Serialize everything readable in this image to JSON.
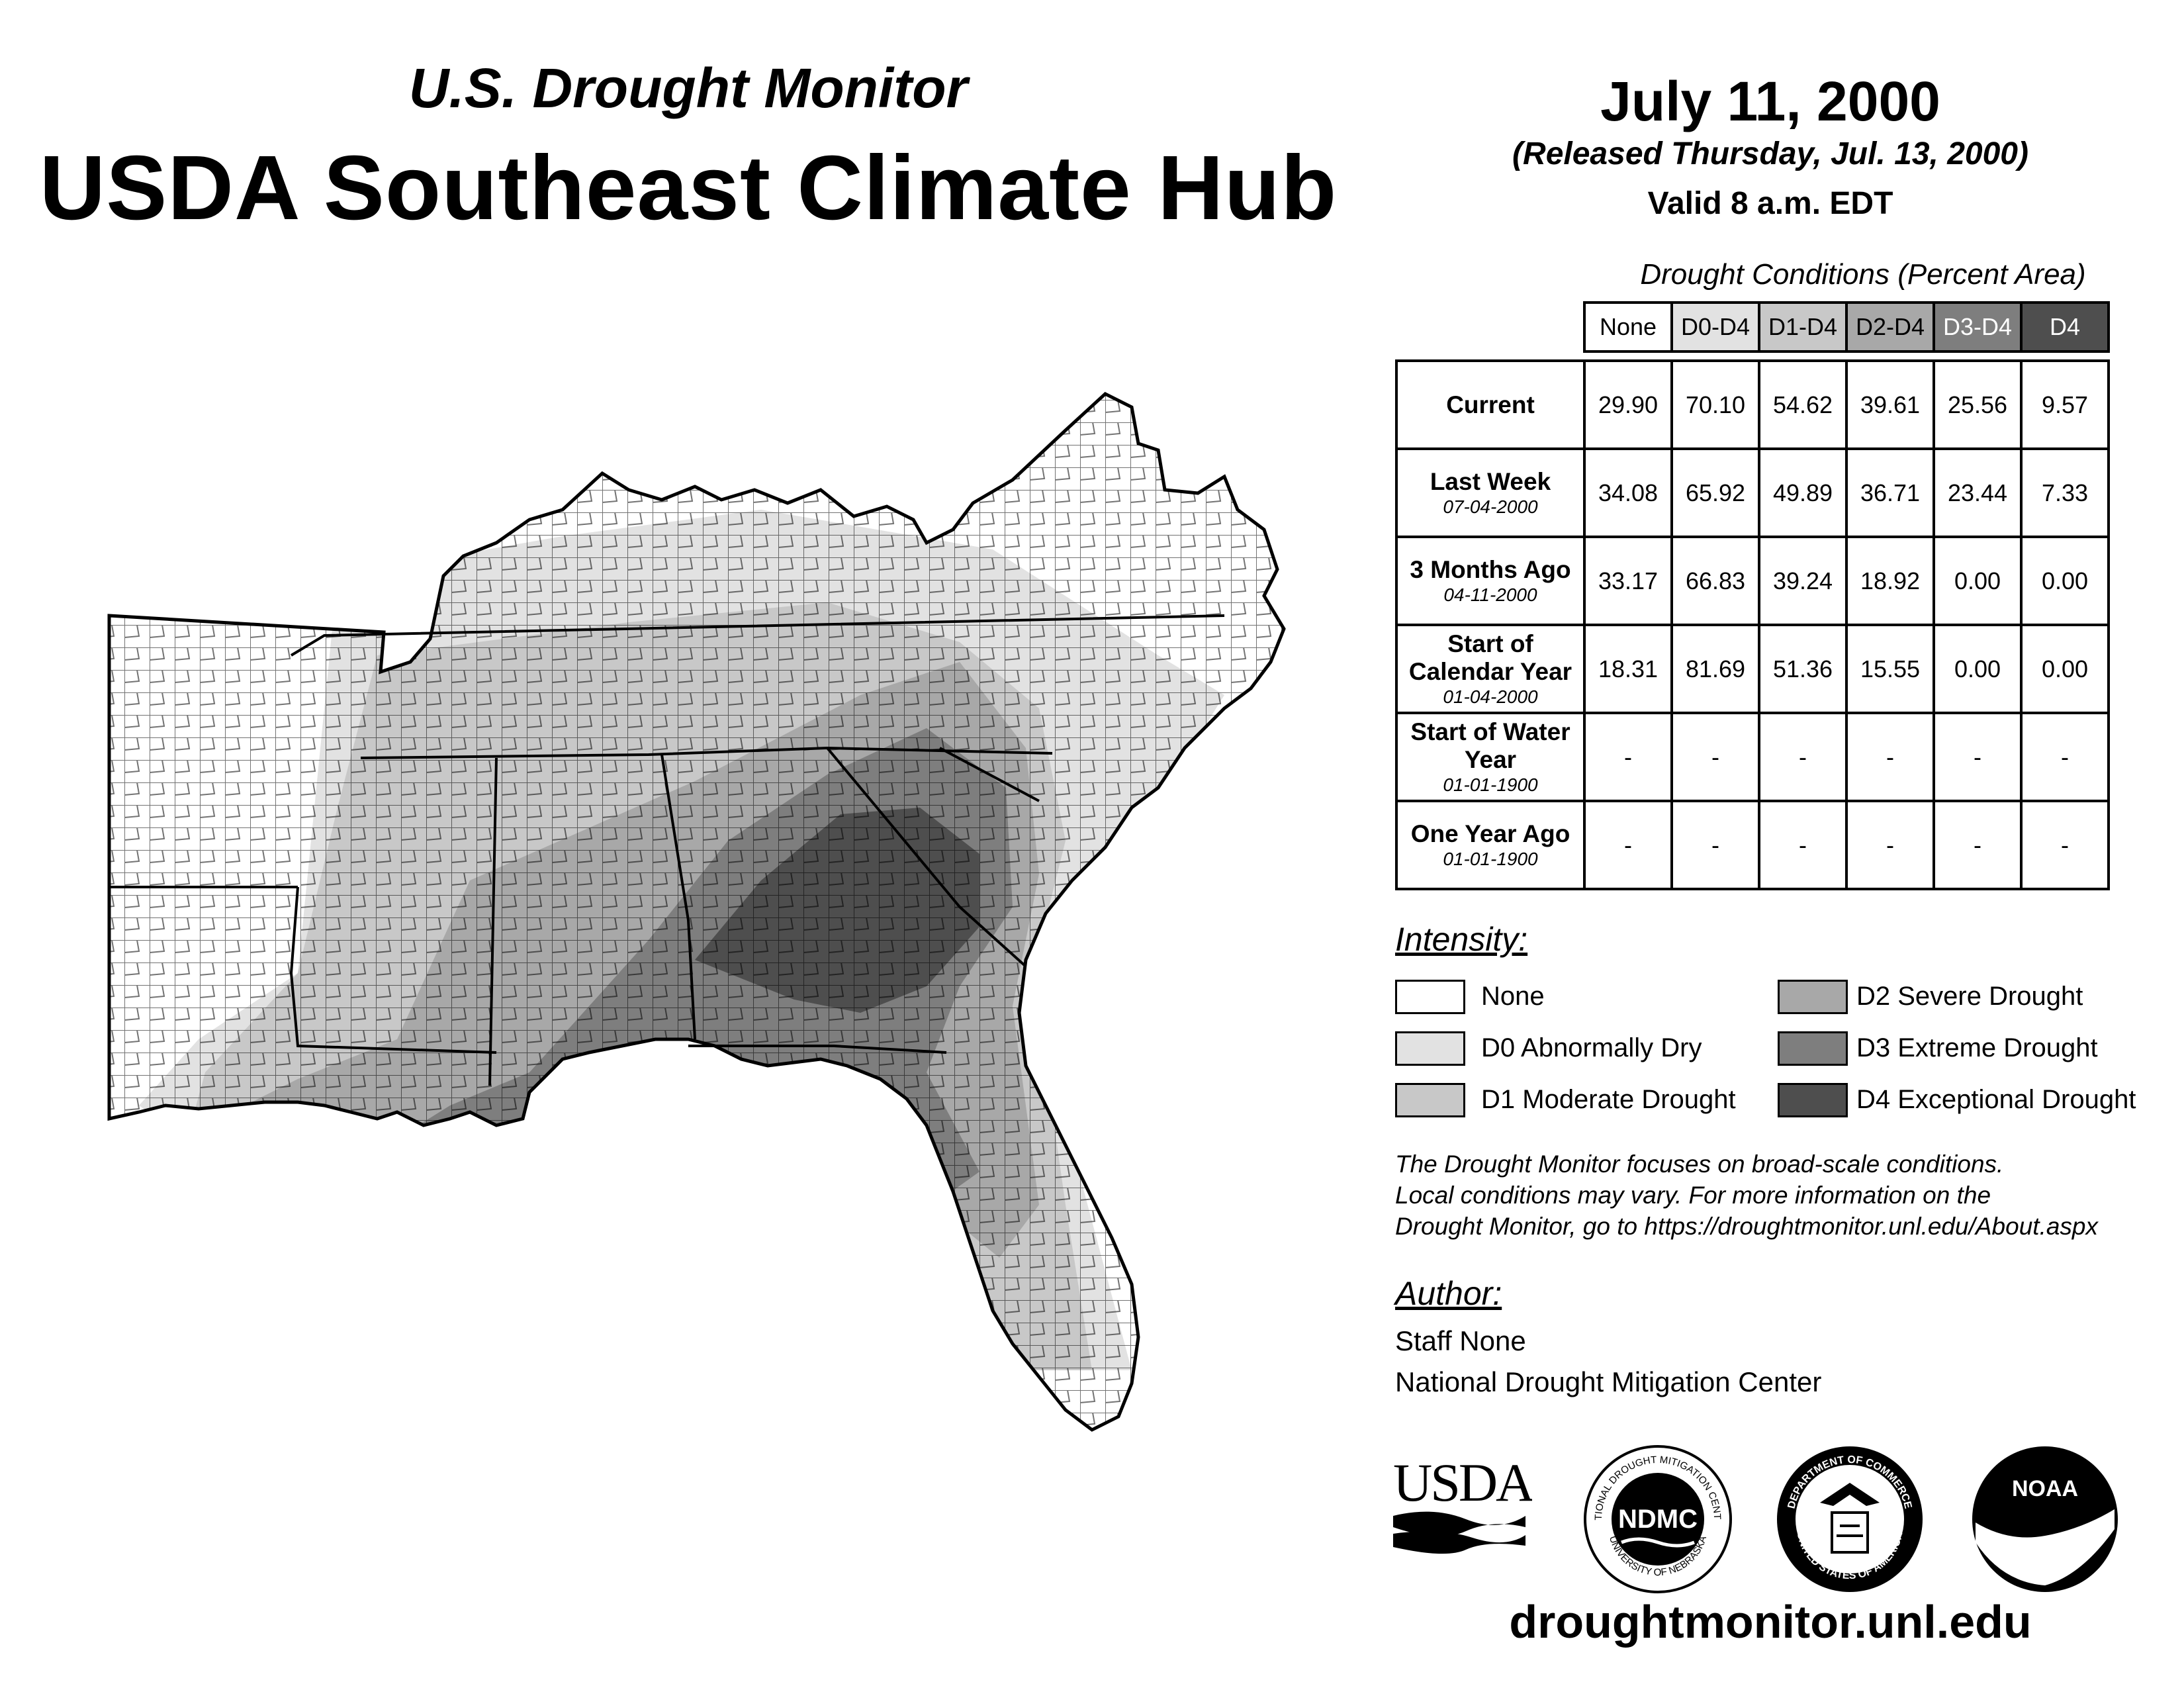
{
  "header": {
    "subtitle": "U.S. Drought Monitor",
    "title": "USDA Southeast Climate Hub",
    "date": "July 11, 2000",
    "released": "(Released Thursday, Jul. 13, 2000)",
    "valid": "Valid 8 a.m. EDT"
  },
  "table": {
    "title": "Drought Conditions (Percent Area)",
    "columns": [
      "None",
      "D0-D4",
      "D1-D4",
      "D2-D4",
      "D3-D4",
      "D4"
    ],
    "rows": [
      {
        "label": "Current",
        "date": "",
        "values": [
          "29.90",
          "70.10",
          "54.62",
          "39.61",
          "25.56",
          "9.57"
        ]
      },
      {
        "label": "Last Week",
        "date": "07-04-2000",
        "values": [
          "34.08",
          "65.92",
          "49.89",
          "36.71",
          "23.44",
          "7.33"
        ]
      },
      {
        "label": "3 Months Ago",
        "date": "04-11-2000",
        "values": [
          "33.17",
          "66.83",
          "39.24",
          "18.92",
          "0.00",
          "0.00"
        ]
      },
      {
        "label": "Start of Calendar Year",
        "date": "01-04-2000",
        "values": [
          "18.31",
          "81.69",
          "51.36",
          "15.55",
          "0.00",
          "0.00"
        ]
      },
      {
        "label": "Start of Water Year",
        "date": "01-01-1900",
        "values": [
          "-",
          "-",
          "-",
          "-",
          "-",
          "-"
        ]
      },
      {
        "label": "One Year Ago",
        "date": "01-01-1900",
        "values": [
          "-",
          "-",
          "-",
          "-",
          "-",
          "-"
        ]
      }
    ]
  },
  "legend": {
    "title": "Intensity:",
    "items": [
      {
        "label": "None",
        "color": "#ffffff"
      },
      {
        "label": "D0 Abnormally Dry",
        "color": "#e2e2e2"
      },
      {
        "label": "D1 Moderate Drought",
        "color": "#c8c8c8"
      },
      {
        "label": "D2 Severe Drought",
        "color": "#a8a8a8"
      },
      {
        "label": "D3 Extreme Drought",
        "color": "#7e7e7e"
      },
      {
        "label": "D4 Exceptional Drought",
        "color": "#4e4e4e"
      }
    ]
  },
  "note": {
    "line1": "The Drought Monitor focuses on broad-scale conditions.",
    "line2": "Local conditions may vary. For more information on the",
    "line3": "Drought Monitor, go to https://droughtmonitor.unl.edu/About.aspx"
  },
  "author": {
    "title": "Author:",
    "name": "Staff None",
    "org": "National Drought Mitigation Center"
  },
  "logos": {
    "usda": "USDA",
    "ndmc": "NDMC",
    "ndmc_ring_top": "NATIONAL DROUGHT MITIGATION CENTER",
    "ndmc_ring_bottom": "UNIVERSITY OF NEBRASKA",
    "commerce_ring_top": "DEPARTMENT OF COMMERCE",
    "commerce_ring_bottom": "UNITED STATES OF AMERICA",
    "noaa": "NOAA"
  },
  "footer": {
    "url": "droughtmonitor.unl.edu"
  }
}
